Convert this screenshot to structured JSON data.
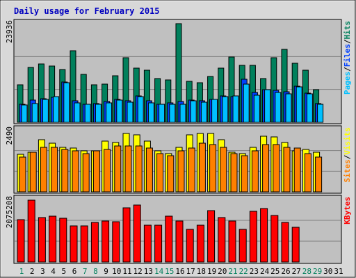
{
  "colors": {
    "hits": "#00805C",
    "files": "#0040FF",
    "pages": "#00C0FF",
    "visits": "#FFFF00",
    "sites": "#FF8000",
    "kbytes": "#FF0000",
    "title": "#0000C0",
    "background": "#C0C0C0",
    "frame": "#D8D8D8",
    "gridline": "#808080"
  },
  "chart_data": [
    {
      "type": "bar",
      "title": "Daily usage for February 2015",
      "categories": [
        "1",
        "2",
        "3",
        "4",
        "5",
        "6",
        "7",
        "8",
        "9",
        "10",
        "11",
        "12",
        "13",
        "14",
        "15",
        "16",
        "17",
        "18",
        "19",
        "20",
        "21",
        "22",
        "23",
        "24",
        "25",
        "26",
        "27",
        "28",
        "29",
        "30",
        "31"
      ],
      "weekend_days": [
        "1",
        "7",
        "8",
        "14",
        "15",
        "21",
        "22",
        "28",
        "29"
      ],
      "ymax_label": "23936",
      "ymax": 23936,
      "grid": true,
      "legend": [
        {
          "text": "Pages",
          "series": "pages"
        },
        {
          "text": "Files",
          "series": "files"
        },
        {
          "text": "Hits",
          "series": "hits"
        }
      ],
      "legend_separator": "/",
      "series": [
        {
          "key": "hits",
          "values": [
            9100,
            13300,
            14200,
            13600,
            12800,
            17300,
            11600,
            9100,
            9300,
            11300,
            15700,
            13100,
            12600,
            10600,
            10300,
            23900,
            9900,
            9600,
            11100,
            13100,
            15800,
            13900,
            13800,
            10700,
            15600,
            17700,
            14400,
            12700,
            7900,
            null,
            null
          ]
        },
        {
          "key": "files",
          "values": [
            4400,
            5400,
            5800,
            6100,
            9700,
            5200,
            4400,
            4500,
            5100,
            5600,
            5300,
            6400,
            5200,
            4400,
            4800,
            5000,
            5400,
            5300,
            5500,
            6400,
            6200,
            10500,
            7300,
            8000,
            7700,
            7500,
            8800,
            7100,
            4600,
            null,
            null
          ]
        },
        {
          "key": "pages",
          "values": [
            4200,
            4600,
            5600,
            6300,
            9600,
            4800,
            4300,
            4300,
            4700,
            5400,
            4900,
            6200,
            4800,
            4300,
            4400,
            4300,
            5300,
            4900,
            5500,
            6300,
            6400,
            9300,
            6600,
            7900,
            7300,
            6900,
            8600,
            6900,
            4400,
            null,
            null
          ]
        }
      ]
    },
    {
      "type": "bar",
      "categories": [
        "1",
        "2",
        "3",
        "4",
        "5",
        "6",
        "7",
        "8",
        "9",
        "10",
        "11",
        "12",
        "13",
        "14",
        "15",
        "16",
        "17",
        "18",
        "19",
        "20",
        "21",
        "22",
        "23",
        "24",
        "25",
        "26",
        "27",
        "28",
        "29",
        "30",
        "31"
      ],
      "ymax_label": "2490",
      "ymax": 2490,
      "grid": true,
      "legend": [
        {
          "text": "Sites",
          "series": "sites"
        },
        {
          "text": "Visits",
          "series": "visits"
        }
      ],
      "legend_separator": "/",
      "series": [
        {
          "key": "visits",
          "values": [
            1500,
            1600,
            2100,
            1950,
            1800,
            1750,
            1650,
            1650,
            2050,
            2000,
            2350,
            2300,
            2050,
            1650,
            1550,
            1800,
            2300,
            2350,
            2350,
            2100,
            1600,
            1550,
            1800,
            2250,
            2200,
            2000,
            1650,
            1700,
            1600,
            null,
            null
          ]
        },
        {
          "key": "sites",
          "values": [
            1400,
            1600,
            1800,
            1780,
            1700,
            1650,
            1550,
            1650,
            1720,
            1850,
            1850,
            1850,
            1750,
            1550,
            1450,
            1650,
            1750,
            1950,
            1900,
            1800,
            1550,
            1450,
            1650,
            1900,
            1900,
            1800,
            1750,
            1550,
            1400,
            null,
            null
          ]
        }
      ]
    },
    {
      "type": "bar",
      "categories": [
        "1",
        "2",
        "3",
        "4",
        "5",
        "6",
        "7",
        "8",
        "9",
        "10",
        "11",
        "12",
        "13",
        "14",
        "15",
        "16",
        "17",
        "18",
        "19",
        "20",
        "21",
        "22",
        "23",
        "24",
        "25",
        "26",
        "27",
        "28",
        "29",
        "30",
        "31"
      ],
      "ymax_label": "2075208",
      "ymax": 2075208,
      "grid": true,
      "legend": [
        {
          "text": "KBytes",
          "series": "kbytes"
        }
      ],
      "legend_separator": "",
      "series": [
        {
          "key": "kbytes",
          "values": [
            1400000,
            2050000,
            1480000,
            1520000,
            1460000,
            1200000,
            1200000,
            1320000,
            1360000,
            1330000,
            1800000,
            1900000,
            1230000,
            1230000,
            1520000,
            1350000,
            1080000,
            1220000,
            1700000,
            1480000,
            1350000,
            1080000,
            1690000,
            1780000,
            1550000,
            1310000,
            1150000,
            null,
            null,
            null,
            null
          ]
        }
      ]
    }
  ]
}
